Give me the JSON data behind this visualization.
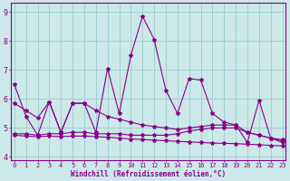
{
  "title": "Windchill (Refroidissement éolien,°C)",
  "background_color": "#cce8e8",
  "line_color": "#880088",
  "grid_color": "#99cccc",
  "tick_color": "#880088",
  "x_values": [
    0,
    1,
    2,
    3,
    4,
    5,
    6,
    7,
    8,
    9,
    10,
    11,
    12,
    13,
    14,
    15,
    16,
    17,
    18,
    19,
    20,
    21,
    22,
    23
  ],
  "line1": [
    6.5,
    5.4,
    4.75,
    5.9,
    4.85,
    5.85,
    5.85,
    4.85,
    7.05,
    5.5,
    7.5,
    8.85,
    8.05,
    6.3,
    5.5,
    6.7,
    6.65,
    5.5,
    5.2,
    5.1,
    4.5,
    5.95,
    4.65,
    4.5
  ],
  "line2": [
    5.85,
    5.6,
    5.35,
    5.9,
    4.85,
    5.85,
    5.85,
    5.6,
    5.4,
    5.3,
    5.2,
    5.1,
    5.05,
    5.0,
    4.95,
    5.0,
    5.05,
    5.1,
    5.1,
    5.1,
    4.85,
    4.75,
    4.65,
    4.6
  ],
  "line3": [
    4.8,
    4.8,
    4.75,
    4.8,
    4.8,
    4.85,
    4.85,
    4.8,
    4.8,
    4.8,
    4.75,
    4.75,
    4.75,
    4.75,
    4.8,
    4.9,
    4.95,
    5.0,
    5.0,
    5.0,
    4.85,
    4.75,
    4.65,
    4.55
  ],
  "line4": [
    4.75,
    4.72,
    4.7,
    4.72,
    4.7,
    4.72,
    4.72,
    4.7,
    4.68,
    4.65,
    4.62,
    4.6,
    4.58,
    4.56,
    4.54,
    4.52,
    4.5,
    4.48,
    4.47,
    4.46,
    4.44,
    4.42,
    4.4,
    4.38
  ],
  "ylim": [
    3.9,
    9.3
  ],
  "yticks": [
    4,
    5,
    6,
    7,
    8,
    9
  ],
  "xlim": [
    -0.3,
    23.3
  ]
}
